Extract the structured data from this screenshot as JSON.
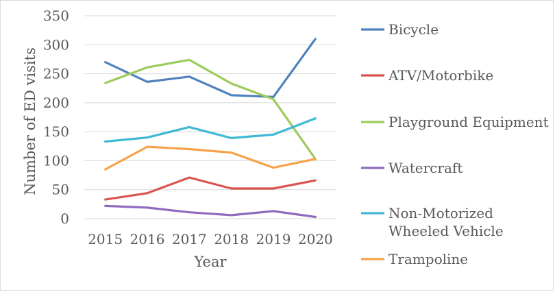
{
  "chart_data": {
    "type": "line",
    "title": "",
    "xlabel": "Year",
    "ylabel": "Number of ED visits",
    "categories": [
      "2015",
      "2016",
      "2017",
      "2018",
      "2019",
      "2020"
    ],
    "ylim": [
      0,
      350
    ],
    "yticks": [
      "0",
      "50",
      "100",
      "150",
      "200",
      "250",
      "300",
      "350"
    ],
    "grid": "horizontal",
    "legend_position": "right",
    "series": [
      {
        "name": "Bicycle",
        "color": "#4f81bd",
        "values": [
          270,
          236,
          245,
          213,
          210,
          310
        ]
      },
      {
        "name": "ATV/Motorbike",
        "color": "#d9534f",
        "values": [
          33,
          44,
          71,
          52,
          52,
          66
        ]
      },
      {
        "name": "Playground Equipment",
        "color": "#9bcc5a",
        "values": [
          234,
          261,
          274,
          233,
          206,
          103
        ]
      },
      {
        "name": "Watercraft",
        "color": "#8e6bbf",
        "values": [
          22,
          19,
          11,
          6,
          13,
          3
        ]
      },
      {
        "name": "Non-Motorized Wheeled Vehicle",
        "legend_lines": [
          "Non-Motorized",
          "Wheeled Vehicle"
        ],
        "color": "#3fb8d3",
        "values": [
          133,
          140,
          158,
          139,
          145,
          173
        ]
      },
      {
        "name": "Trampoline",
        "color": "#f7a24a",
        "values": [
          85,
          124,
          120,
          114,
          88,
          103
        ]
      }
    ]
  }
}
